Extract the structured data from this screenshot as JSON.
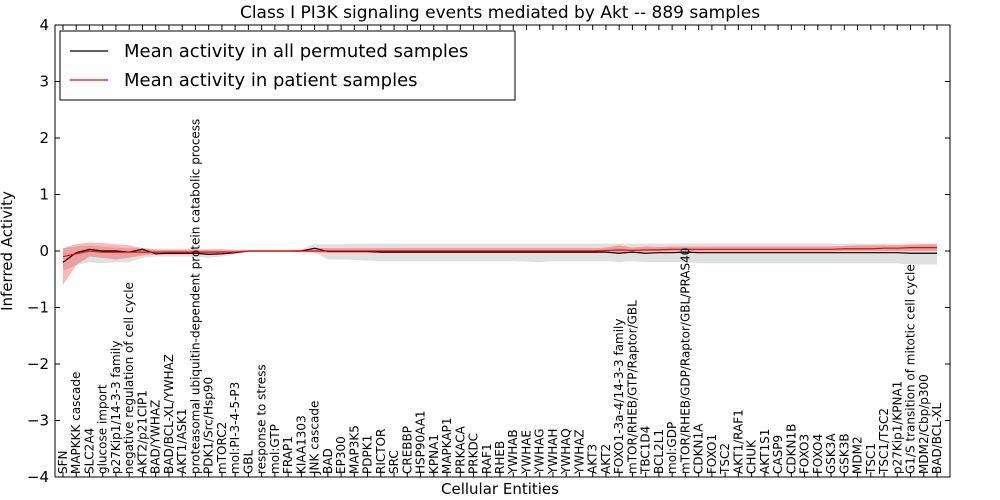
{
  "chart_data": {
    "type": "line",
    "title": "Class I PI3K signaling events mediated by Akt -- 889 samples",
    "xlabel": "Cellular Entities",
    "ylabel": "Inferred Activity",
    "ylim": [
      -4,
      4
    ],
    "yticks": [
      "4",
      "3",
      "2",
      "1",
      "0",
      "−1",
      "−2",
      "−3",
      "−4"
    ],
    "grid": false,
    "legend_position": "top-left",
    "categories": [
      "SFN",
      "MAPKKK cascade",
      "SLC2A4",
      "glucose import",
      "p27Kip1/14-3-3 family",
      "negative regulation of cell cycle",
      "AKT2/p21CIP1",
      "BAD/YWHAZ",
      "BAD/BCL-XL/YWHAZ",
      "AKT1/ASK1",
      "proteasomal ubiquitin-dependent protein catabolic process",
      "PDK1/Src/Hsp90",
      "mTORC2",
      "mol:PI-3-4-5-P3",
      "GBL",
      "response to stress",
      "mol:GTP",
      "FRAP1",
      "KIAA1303",
      "JNK cascade",
      "BAD",
      "EP300",
      "MAP3K5",
      "PDPK1",
      "RICTOR",
      "SRC",
      "CREBBP",
      "HSP90AA1",
      "KPNA1",
      "MAPKAP1",
      "PRKACA",
      "PRKDC",
      "RAF1",
      "RHEB",
      "YWHAB",
      "YWHAE",
      "YWHAG",
      "YWHAH",
      "YWHAQ",
      "YWHAZ",
      "AKT3",
      "AKT2",
      "FOXO1-3a-4/14-3-3 family",
      "mTOR/RHEB/GTP/Raptor/GBL",
      "TBC1D4",
      "BCL2L1",
      "mol:GDP",
      "mTOR/RHEB/GDP/Raptor/GBL/PRAS40",
      "CDKN1A",
      "FOXO1",
      "TSC2",
      "AKT1/RAF1",
      "CHUK",
      "AKT1S1",
      "CASP9",
      "CDKN1B",
      "FOXO3",
      "FOXO4",
      "GSK3A",
      "GSK3B",
      "MDM2",
      "TSC1",
      "TSC1/TSC2",
      "p27Kip1/KPNA1",
      "G1/S transition of mitotic cell cycle",
      "MDM2/Cbp/p300",
      "BAD/BCL-XL"
    ],
    "series": [
      {
        "name": "Mean activity in all permuted samples",
        "color": "#000000",
        "values": [
          -0.2,
          -0.03,
          0.03,
          0.0,
          0.0,
          -0.02,
          0.03,
          -0.05,
          -0.04,
          -0.04,
          -0.04,
          -0.06,
          -0.05,
          -0.03,
          0.0,
          0.0,
          0.0,
          0.0,
          0.0,
          0.05,
          -0.01,
          -0.01,
          -0.01,
          -0.01,
          -0.02,
          -0.02,
          -0.02,
          -0.02,
          -0.02,
          -0.02,
          -0.02,
          -0.02,
          -0.02,
          -0.02,
          -0.02,
          -0.02,
          -0.02,
          -0.02,
          -0.02,
          -0.02,
          -0.02,
          -0.02,
          -0.04,
          -0.02,
          -0.04,
          -0.03,
          -0.03,
          -0.02,
          -0.03,
          -0.03,
          -0.03,
          -0.03,
          -0.03,
          -0.03,
          -0.03,
          -0.03,
          -0.03,
          -0.03,
          -0.03,
          -0.03,
          -0.03,
          -0.03,
          -0.03,
          -0.03,
          -0.04,
          -0.04,
          -0.04
        ],
        "band_low": [
          -0.35,
          -0.25,
          -0.2,
          -0.22,
          -0.2,
          -0.2,
          -0.12,
          -0.1,
          -0.1,
          -0.1,
          -0.1,
          -0.12,
          -0.1,
          -0.06,
          -0.01,
          -0.01,
          -0.01,
          -0.01,
          -0.02,
          -0.02,
          -0.15,
          -0.15,
          -0.16,
          -0.17,
          -0.18,
          -0.18,
          -0.18,
          -0.18,
          -0.18,
          -0.18,
          -0.18,
          -0.18,
          -0.18,
          -0.18,
          -0.18,
          -0.19,
          -0.2,
          -0.18,
          -0.18,
          -0.18,
          -0.18,
          -0.18,
          -0.2,
          -0.18,
          -0.2,
          -0.2,
          -0.2,
          -0.2,
          -0.22,
          -0.22,
          -0.22,
          -0.22,
          -0.22,
          -0.22,
          -0.22,
          -0.22,
          -0.22,
          -0.22,
          -0.22,
          -0.22,
          -0.22,
          -0.22,
          -0.22,
          -0.22,
          -0.24,
          -0.24,
          -0.24
        ],
        "band_high": [
          0.05,
          0.08,
          0.1,
          0.08,
          0.06,
          0.05,
          0.05,
          0.02,
          0.02,
          0.02,
          0.02,
          0.02,
          0.02,
          0.02,
          0.01,
          0.01,
          0.01,
          0.01,
          0.03,
          0.12,
          0.12,
          0.12,
          0.13,
          0.13,
          0.13,
          0.13,
          0.13,
          0.13,
          0.13,
          0.13,
          0.13,
          0.13,
          0.13,
          0.13,
          0.13,
          0.13,
          0.13,
          0.13,
          0.13,
          0.13,
          0.13,
          0.13,
          0.13,
          0.13,
          0.13,
          0.13,
          0.13,
          0.13,
          0.13,
          0.13,
          0.13,
          0.13,
          0.13,
          0.13,
          0.13,
          0.13,
          0.13,
          0.13,
          0.13,
          0.13,
          0.13,
          0.13,
          0.13,
          0.13,
          0.13,
          0.13,
          0.13
        ]
      },
      {
        "name": "Mean activity in patient samples",
        "color": "#ff0000",
        "values": [
          -0.1,
          -0.05,
          0.0,
          -0.02,
          -0.02,
          -0.02,
          -0.02,
          -0.02,
          -0.02,
          -0.02,
          -0.02,
          -0.02,
          -0.02,
          -0.02,
          0.0,
          0.0,
          0.0,
          0.0,
          0.0,
          0.0,
          0.0,
          0.0,
          0.0,
          0.0,
          0.0,
          0.0,
          0.0,
          0.0,
          0.0,
          0.0,
          0.0,
          0.0,
          0.0,
          0.0,
          0.0,
          0.0,
          0.0,
          0.0,
          0.0,
          0.0,
          0.0,
          0.01,
          0.02,
          0.01,
          0.02,
          0.02,
          0.03,
          0.03,
          0.03,
          0.03,
          0.03,
          0.03,
          0.03,
          0.03,
          0.03,
          0.03,
          0.03,
          0.03,
          0.03,
          0.04,
          0.04,
          0.04,
          0.05,
          0.05,
          0.06,
          0.06,
          0.06
        ],
        "band_low": [
          -0.6,
          -0.25,
          -0.1,
          -0.12,
          -0.15,
          -0.12,
          -0.08,
          -0.06,
          -0.06,
          -0.06,
          -0.06,
          -0.06,
          -0.06,
          -0.04,
          -0.01,
          -0.01,
          -0.01,
          -0.01,
          -0.02,
          -0.03,
          -0.03,
          -0.03,
          -0.03,
          -0.03,
          -0.03,
          -0.03,
          -0.03,
          -0.03,
          -0.03,
          -0.03,
          -0.03,
          -0.03,
          -0.03,
          -0.03,
          -0.03,
          -0.03,
          -0.03,
          -0.03,
          -0.03,
          -0.03,
          -0.03,
          -0.02,
          -0.02,
          -0.02,
          -0.01,
          -0.01,
          -0.01,
          -0.01,
          -0.01,
          -0.01,
          -0.01,
          -0.01,
          -0.01,
          -0.01,
          -0.01,
          -0.01,
          -0.01,
          -0.01,
          -0.01,
          0.0,
          0.0,
          0.0,
          0.0,
          0.0,
          0.0,
          0.0,
          0.0
        ],
        "band_high": [
          0.05,
          0.12,
          0.15,
          0.14,
          0.12,
          0.1,
          0.05,
          0.03,
          0.03,
          0.03,
          0.03,
          0.03,
          0.03,
          0.02,
          0.01,
          0.01,
          0.01,
          0.01,
          0.02,
          0.05,
          0.05,
          0.05,
          0.05,
          0.05,
          0.05,
          0.05,
          0.05,
          0.05,
          0.05,
          0.05,
          0.05,
          0.05,
          0.05,
          0.05,
          0.05,
          0.05,
          0.05,
          0.05,
          0.05,
          0.05,
          0.05,
          0.06,
          0.1,
          0.06,
          0.08,
          0.07,
          0.08,
          0.08,
          0.08,
          0.08,
          0.08,
          0.08,
          0.08,
          0.08,
          0.08,
          0.08,
          0.08,
          0.08,
          0.08,
          0.09,
          0.1,
          0.1,
          0.1,
          0.1,
          0.11,
          0.12,
          0.12
        ]
      }
    ]
  }
}
